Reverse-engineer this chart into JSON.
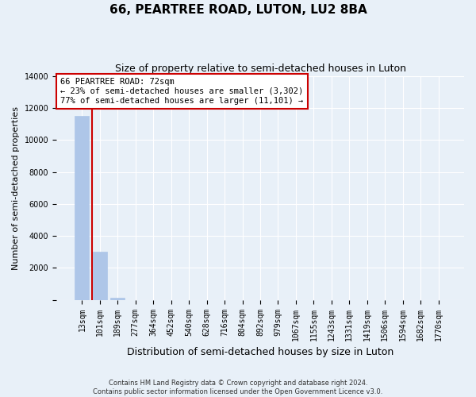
{
  "title": "66, PEARTREE ROAD, LUTON, LU2 8BA",
  "subtitle": "Size of property relative to semi-detached houses in Luton",
  "xlabel": "Distribution of semi-detached houses by size in Luton",
  "ylabel": "Number of semi-detached properties",
  "categories": [
    "13sqm",
    "101sqm",
    "189sqm",
    "277sqm",
    "364sqm",
    "452sqm",
    "540sqm",
    "628sqm",
    "716sqm",
    "804sqm",
    "892sqm",
    "979sqm",
    "1067sqm",
    "1155sqm",
    "1243sqm",
    "1331sqm",
    "1419sqm",
    "1506sqm",
    "1594sqm",
    "1682sqm",
    "1770sqm"
  ],
  "values": [
    11500,
    3000,
    150,
    0,
    0,
    0,
    0,
    0,
    0,
    0,
    0,
    0,
    0,
    0,
    0,
    0,
    0,
    0,
    0,
    0,
    0
  ],
  "bar_color": "#aec6e8",
  "bar_edgecolor": "#aec6e8",
  "vline_color": "#cc0000",
  "vline_x": 0.54,
  "ylim": [
    0,
    14000
  ],
  "yticks": [
    0,
    2000,
    4000,
    6000,
    8000,
    10000,
    12000,
    14000
  ],
  "annotation_text": "66 PEARTREE ROAD: 72sqm\n← 23% of semi-detached houses are smaller (3,302)\n77% of semi-detached houses are larger (11,101) →",
  "annotation_box_color": "#ffffff",
  "annotation_border_color": "#cc0000",
  "footer_line1": "Contains HM Land Registry data © Crown copyright and database right 2024.",
  "footer_line2": "Contains public sector information licensed under the Open Government Licence v3.0.",
  "background_color": "#e8f0f8",
  "grid_color": "#ffffff",
  "title_fontsize": 11,
  "subtitle_fontsize": 9,
  "tick_fontsize": 7,
  "ylabel_fontsize": 8,
  "xlabel_fontsize": 9,
  "annotation_fontsize": 7.5
}
